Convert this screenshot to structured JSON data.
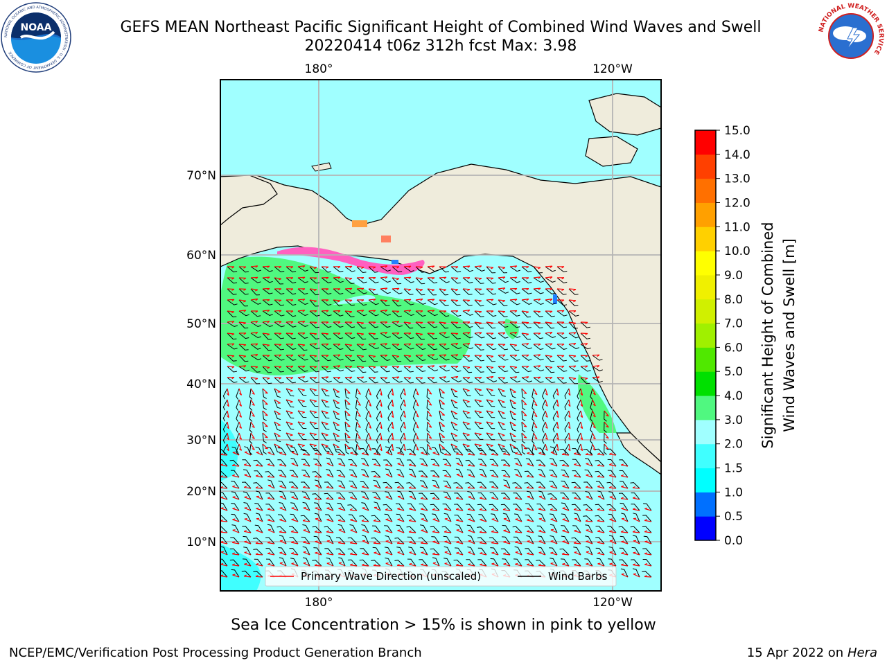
{
  "header": {
    "title_line1": "GEFS MEAN Northeast Pacific Significant Height of Combined Wind Waves and Swell",
    "title_line2": "20220414 t06z 312h fcst   Max: 3.98"
  },
  "logos": {
    "noaa_text": "NOAA",
    "noaa_ring": "NATIONAL OCEANIC AND ATMOSPHERIC ADMINISTRATION · U.S. DEPARTMENT OF COMMERCE",
    "nws_ring": "NATIONAL WEATHER SERVICE"
  },
  "chart_data": {
    "type": "heatmap",
    "title": "GEFS MEAN Northeast Pacific Significant Height of Combined Wind Waves and Swell",
    "lon_ticks": [
      "180°",
      "120°W"
    ],
    "lat_ticks": [
      "70°N",
      "60°N",
      "50°N",
      "40°N",
      "30°N",
      "20°N",
      "10°N"
    ],
    "grid": true,
    "colorbar": {
      "label_line1": "Significant Height of Combined",
      "label_line2": "Wind Waves and Swell [m]",
      "levels": [
        0.0,
        0.5,
        1.0,
        1.5,
        2.0,
        3.0,
        4.0,
        5.0,
        6.0,
        7.0,
        8.0,
        9.0,
        10.0,
        11.0,
        12.0,
        13.0,
        14.0,
        15.0
      ],
      "tick_labels": [
        "0.0",
        "0.5",
        "1.0",
        "1.5",
        "2.0",
        "3.0",
        "4.0",
        "5.0",
        "6.0",
        "7.0",
        "8.0",
        "9.0",
        "10.0",
        "11.0",
        "12.0",
        "13.0",
        "14.0",
        "15.0"
      ],
      "colors": [
        "#0000ff",
        "#0070ff",
        "#00ffff",
        "#40ffff",
        "#a0ffff",
        "#50f880",
        "#00e000",
        "#50e800",
        "#a0f000",
        "#d0f000",
        "#f0f000",
        "#ffff00",
        "#ffd000",
        "#ffa000",
        "#ff7000",
        "#ff4000",
        "#ff0000"
      ]
    },
    "max_value": 3.98,
    "legend": {
      "position": "bottom-center",
      "items": [
        {
          "label": "Primary Wave Direction (unscaled)",
          "color": "#ff0000"
        },
        {
          "label": "Wind Barbs",
          "color": "#000000"
        }
      ]
    },
    "colors": {
      "land": "#efecdc",
      "ocean_base": "#a0ffff",
      "band_2to3": "#a0ffff",
      "band_3to4": "#50f880",
      "band_1_5to2": "#40ffff",
      "grid": "#b4b4b4"
    }
  },
  "notes": {
    "sea_ice": "Sea Ice Concentration > 15% is shown in pink to yellow"
  },
  "footer": {
    "left": "NCEP/EMC/Verification Post Processing Product Generation Branch",
    "right_prefix": "15 Apr 2022 on ",
    "right_host": "Hera"
  }
}
